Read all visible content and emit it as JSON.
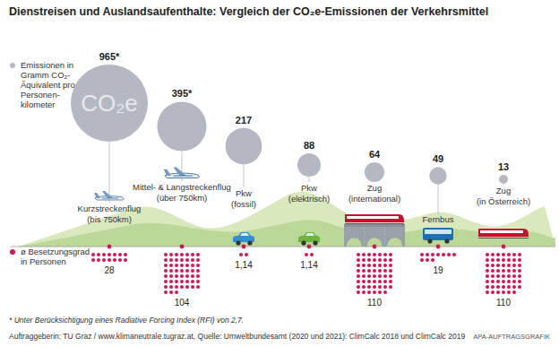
{
  "chart_data": {
    "type": "bubble",
    "title": "Dienstreisen und Auslandsaufenthalte: Vergleich der CO₂e-Emissionen der Verkehrsmittel",
    "categories": [
      "Kurzstreckenflug\n(bis 750km)",
      "Mittel- & Langstreckenflug\n(über 750km)",
      "Pkw\n(fossil)",
      "Pkw\n(elektrisch)",
      "Zug\n(international)",
      "Fernbus",
      "Zug\n(in Österreich)"
    ],
    "series": [
      {
        "name": "Emissionen in\nGramm CO₂-\nÄquivalent pro\nPersonen-\nkilometer",
        "color": "#b5b8c2",
        "values": [
          965,
          395,
          217,
          88,
          64,
          49,
          13
        ],
        "value_labels": [
          "965*",
          "395*",
          "217",
          "88",
          "64",
          "49",
          "13"
        ]
      },
      {
        "name": "ø Besetzungsgrad\nin Personen",
        "color": "#d4145a",
        "values": [
          28,
          104,
          1.14,
          1.14,
          110,
          19,
          110
        ],
        "value_labels": [
          "28",
          "104",
          "1,14",
          "1,14",
          "110",
          "19",
          "110"
        ]
      }
    ],
    "annotations": [
      "CO₂e",
      "* Unter Berücksichtigung eines Radiative Forcing Index (RFI) von 2,7.",
      "Auftraggeberin: TU Graz / www.klimaneutrale.tugraz.at, Quelle: Umweltbundesamt (2020 und 2021): ClimCalc 2018 und ClimCalc 2019",
      "APA-AUFTRAGSGRAFIK"
    ],
    "data_labels": true,
    "legend": "top-left"
  }
}
